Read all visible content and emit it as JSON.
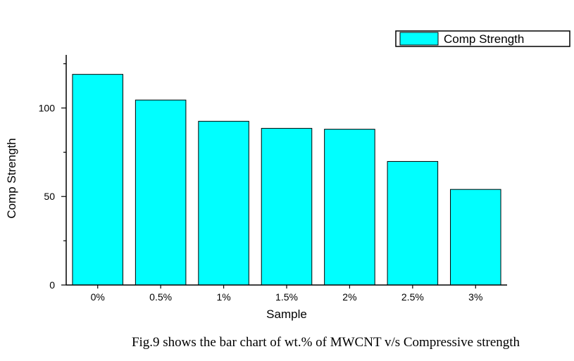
{
  "chart_data": {
    "type": "bar",
    "categories": [
      "0%",
      "0.5%",
      "1%",
      "1.5%",
      "2%",
      "2.5%",
      "3%"
    ],
    "series": [
      {
        "name": "Comp Strength",
        "values": [
          119,
          104.5,
          92.5,
          88.5,
          88,
          69.8,
          54
        ]
      }
    ],
    "xlabel": "Sample",
    "ylabel": "Comp Strength",
    "ylim": [
      0,
      130
    ],
    "yticks": [
      0,
      50,
      100
    ],
    "grid": false,
    "legend": "top-right",
    "bar_color": "#00FFFF",
    "bar_edge_color": "#000000"
  },
  "caption": "Fig.9 shows the bar chart of wt.% of MWCNT v/s Compressive strength"
}
